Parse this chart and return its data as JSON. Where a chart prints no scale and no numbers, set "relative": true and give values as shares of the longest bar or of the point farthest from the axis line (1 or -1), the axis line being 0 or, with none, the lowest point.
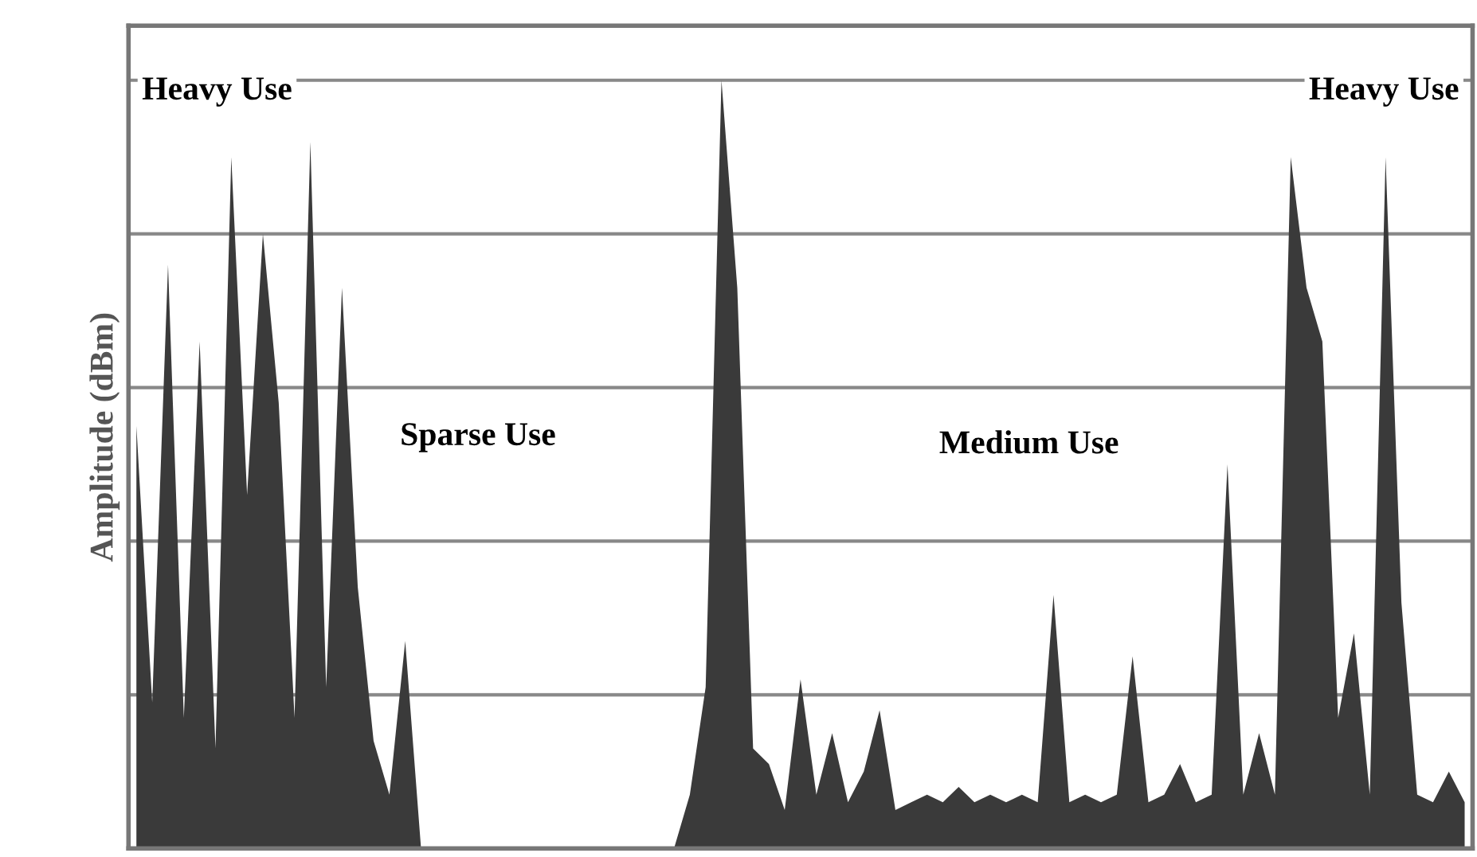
{
  "chart_data": {
    "type": "area",
    "relative": true,
    "ylabel": "Amplitude (dBm)",
    "grid": "y",
    "categories": [
      null,
      null,
      null,
      null,
      null,
      null,
      null,
      null,
      null,
      null,
      null,
      null,
      null,
      null,
      null,
      null,
      null,
      null,
      null,
      null,
      null,
      null,
      null,
      null,
      null,
      null,
      null,
      null,
      null,
      null,
      null,
      null,
      null,
      null,
      null,
      null,
      null,
      null,
      null,
      null,
      null,
      null,
      null,
      null,
      null,
      null,
      null,
      null,
      null,
      null,
      null,
      null,
      null,
      null,
      null,
      null,
      null,
      null,
      null,
      null,
      null,
      null,
      null,
      null,
      null,
      null,
      null,
      null,
      null,
      null,
      null,
      null,
      null,
      null,
      null,
      null,
      null,
      null,
      null,
      null,
      null,
      null,
      null,
      null,
      null
    ],
    "series": [
      {
        "color": "#3a3a3a",
        "values": [
          0.55,
          0.19,
          0.76,
          0.17,
          0.66,
          0.13,
          0.9,
          0.46,
          0.8,
          0.58,
          0.17,
          0.92,
          0.21,
          0.73,
          0.34,
          0.14,
          0.07,
          0.27,
          0,
          0,
          0,
          0,
          0,
          0,
          0,
          0,
          0,
          0,
          0,
          0,
          0,
          0,
          0,
          0,
          0,
          0.07,
          0.21,
          1.0,
          0.73,
          0.13,
          0.11,
          0.05,
          0.22,
          0.07,
          0.15,
          0.06,
          0.1,
          0.18,
          0.05,
          0.06,
          0.07,
          0.06,
          0.08,
          0.06,
          0.07,
          0.06,
          0.07,
          0.06,
          0.33,
          0.06,
          0.07,
          0.06,
          0.07,
          0.25,
          0.06,
          0.07,
          0.11,
          0.06,
          0.07,
          0.5,
          0.07,
          0.15,
          0.07,
          0.9,
          0.73,
          0.66,
          0.17,
          0.28,
          0.07,
          0.9,
          0.32,
          0.07,
          0.06,
          0.1,
          0.06
        ]
      }
    ],
    "annotations": [
      "Heavy Use",
      "Sparse Use",
      "Medium Use",
      "Heavy Use"
    ]
  }
}
